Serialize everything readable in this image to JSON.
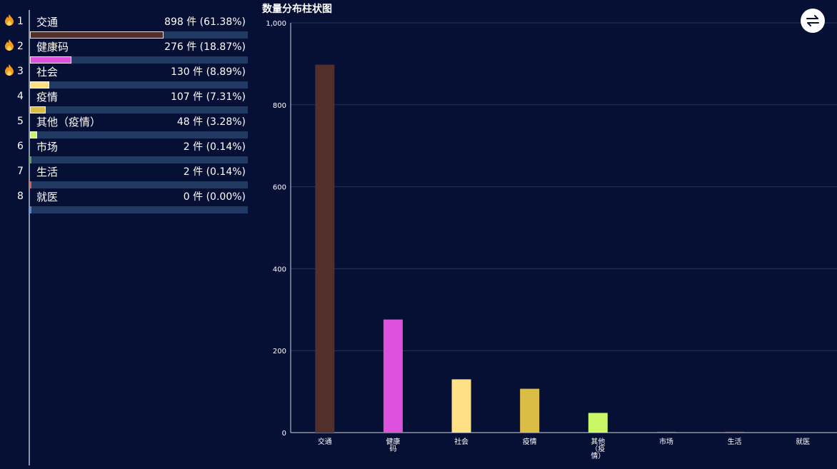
{
  "ranking": {
    "unit": "件",
    "items": [
      {
        "rank": "1",
        "name": "交通",
        "value_text": "898 件  (61.38%)",
        "percent": 61.38,
        "color": "#532f2b",
        "hot": true
      },
      {
        "rank": "2",
        "name": "健康码",
        "value_text": "276 件  (18.87%)",
        "percent": 18.87,
        "color": "#dc52dc",
        "hot": true
      },
      {
        "rank": "3",
        "name": "社会",
        "value_text": "130 件  (8.89%)",
        "percent": 8.89,
        "color": "#ffe084",
        "hot": true
      },
      {
        "rank": "4",
        "name": "疫情",
        "value_text": "107 件  (7.31%)",
        "percent": 7.31,
        "color": "#dbbd46",
        "hot": false
      },
      {
        "rank": "5",
        "name": "其他（疫情）",
        "value_text": "48 件  (3.28%)",
        "percent": 3.28,
        "color": "#c9f765",
        "hot": false
      },
      {
        "rank": "6",
        "name": "市场",
        "value_text": "2 件  (0.14%)",
        "percent": 0.14,
        "color": "#56a25b",
        "hot": false
      },
      {
        "rank": "7",
        "name": "生活",
        "value_text": "2 件  (0.14%)",
        "percent": 0.14,
        "color": "#e0593d",
        "hot": false
      },
      {
        "rank": "8",
        "name": "就医",
        "value_text": "0 件  (0.00%)",
        "percent": 0.0,
        "color": "#4e86d7",
        "hot": false
      }
    ]
  },
  "chart_data": {
    "type": "bar",
    "title": "数量分布柱状图",
    "categories": [
      "交通",
      "健康码",
      "社会",
      "疫情",
      "其他（疫情）",
      "市场",
      "生活",
      "就医"
    ],
    "category_labels": [
      [
        "交通"
      ],
      [
        "健康",
        "码"
      ],
      [
        "社会"
      ],
      [
        "疫情"
      ],
      [
        "其他",
        "（疫",
        "情）"
      ],
      [
        "市场"
      ],
      [
        "生活"
      ],
      [
        "就医"
      ]
    ],
    "values": [
      898,
      276,
      130,
      107,
      48,
      2,
      2,
      0
    ],
    "colors": [
      "#532f2b",
      "#dc52dc",
      "#ffe084",
      "#dbbd46",
      "#c9f765",
      "#56a25b",
      "#e0593d",
      "#4e86d7"
    ],
    "ylim": [
      0,
      1000
    ],
    "yticks": [
      0,
      200,
      400,
      600,
      800,
      1000
    ],
    "ytick_labels": [
      "0",
      "200",
      "400",
      "600",
      "800",
      "1,000"
    ],
    "grid": true,
    "xlabel": "",
    "ylabel": ""
  },
  "toolbar": {
    "switch_icon": "swap-arrows-icon"
  }
}
